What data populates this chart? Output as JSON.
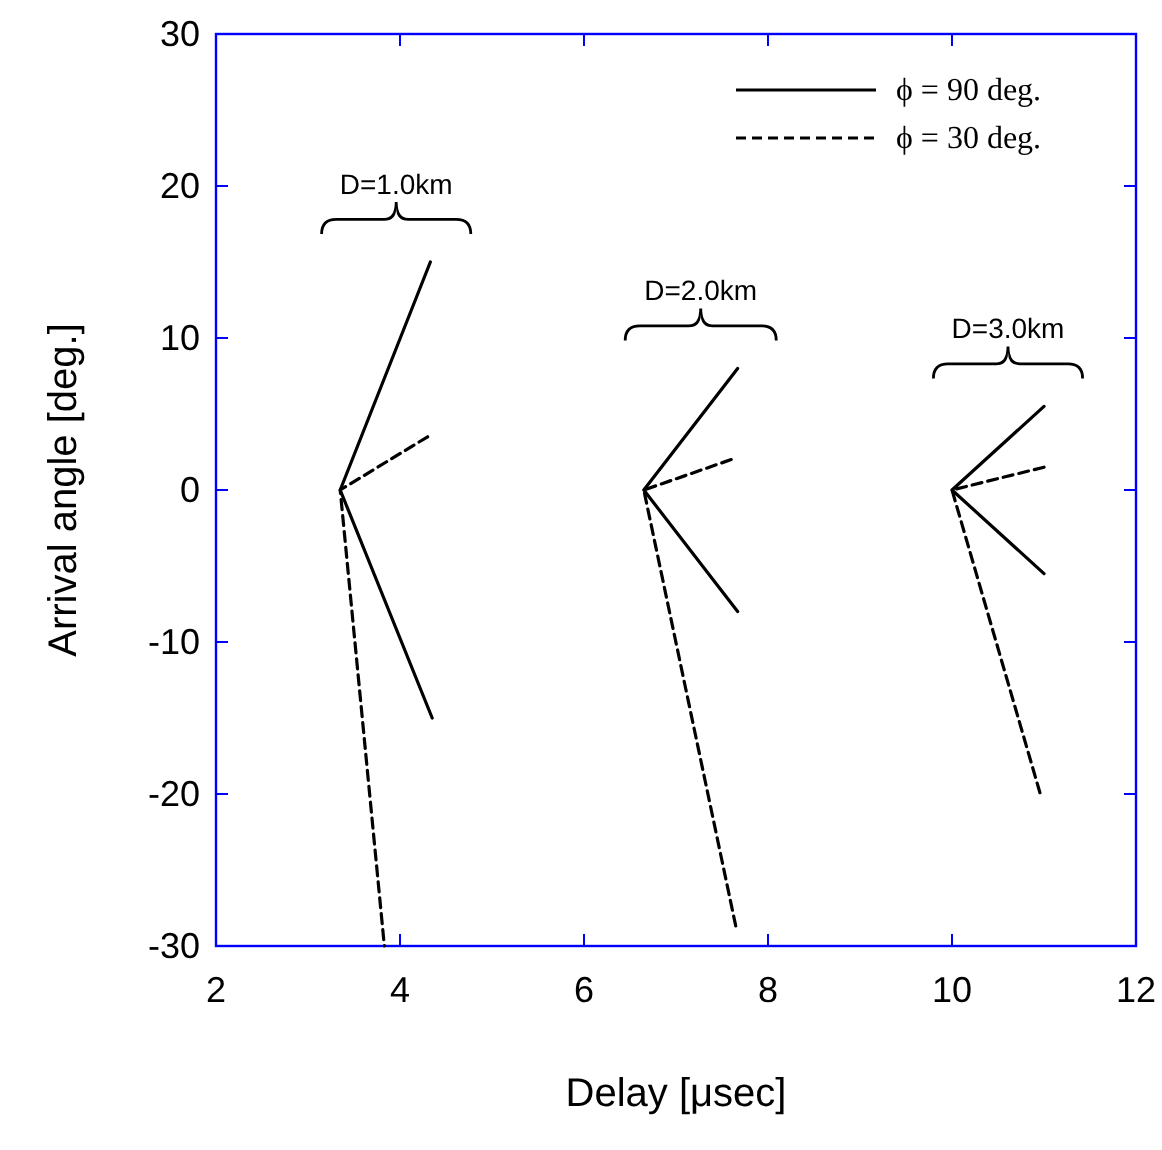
{
  "chart_data": {
    "type": "line",
    "xlabel": "Delay [μsec]",
    "ylabel": "Arrival angle [deg.]",
    "xlim": [
      2,
      12
    ],
    "ylim": [
      -30,
      30
    ],
    "xticks": [
      2,
      4,
      6,
      8,
      10,
      12
    ],
    "yticks": [
      -30,
      -20,
      -10,
      0,
      10,
      20,
      30
    ],
    "grid": false,
    "legend": "top right",
    "marker": "none",
    "series": [
      {
        "name": "ϕ = 90 deg.",
        "color": "#000000",
        "line_style": "solid",
        "x": [
          4.33,
          3.35,
          4.35
        ],
        "values": [
          15,
          0,
          -15
        ]
      },
      {
        "name": "ϕ = 30 deg.",
        "color": "#000000",
        "line_style": "dashed",
        "x": [
          4.3,
          3.35,
          3.83
        ],
        "values": [
          3.5,
          0,
          -30
        ]
      },
      {
        "color": "#000000",
        "line_style": "solid",
        "x": [
          7.67,
          6.65,
          7.67
        ],
        "values": [
          8,
          0,
          -8
        ]
      },
      {
        "color": "#000000",
        "line_style": "dashed",
        "x": [
          7.6,
          6.65,
          7.65
        ],
        "values": [
          2,
          0,
          -28.7
        ]
      },
      {
        "color": "#000000",
        "line_style": "solid",
        "x": [
          11,
          10,
          11
        ],
        "values": [
          5.5,
          0,
          -5.5
        ]
      },
      {
        "color": "#000000",
        "line_style": "dashed",
        "x": [
          11,
          10,
          10.96
        ],
        "values": [
          1.5,
          0,
          -20
        ]
      }
    ],
    "annotations": [
      "D=1.0km",
      "D=2.0km",
      "D=3.0km"
    ]
  }
}
